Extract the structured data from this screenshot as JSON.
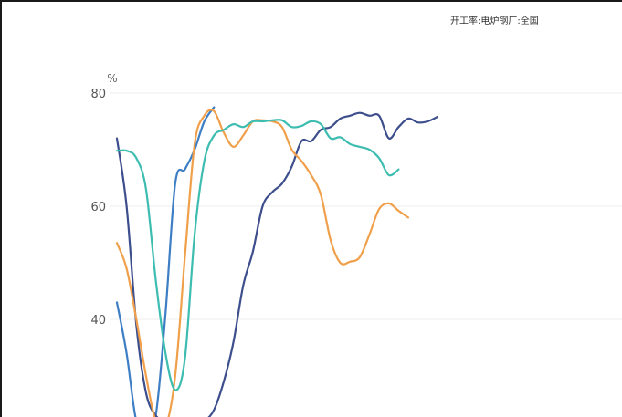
{
  "chart_data": {
    "type": "line",
    "title": "开工率:电炉钢厂:全国",
    "ylabel": "%",
    "xlabel": "",
    "ylim": [
      20,
      80
    ],
    "yticks": [
      40,
      60,
      80
    ],
    "grid": true,
    "x": [
      0,
      1,
      2,
      3,
      4,
      5,
      6,
      7,
      8,
      9,
      10,
      11,
      12,
      13,
      14,
      15,
      16,
      17,
      18,
      19,
      20,
      21,
      22,
      23,
      24,
      25,
      26,
      27,
      28,
      29,
      30,
      31,
      32,
      33,
      34,
      35,
      36,
      37,
      38,
      39,
      40,
      41,
      42,
      43,
      44,
      45,
      46,
      47,
      48,
      49,
      50,
      51,
      52
    ],
    "series": [
      {
        "color": "#3e7ec4",
        "values": [
          43,
          34,
          22,
          20.5,
          23,
          41,
          64,
          66.5,
          70,
          75,
          77.5,
          null,
          null,
          null,
          null,
          null,
          null,
          null,
          null,
          null,
          null,
          null,
          null,
          null,
          null,
          null,
          null,
          null,
          null,
          null,
          null,
          null,
          null,
          null,
          null,
          null,
          null,
          null,
          null,
          null,
          null,
          null,
          null,
          null,
          null,
          null,
          null,
          null,
          null,
          null,
          null,
          null,
          null
        ]
      },
      {
        "color": "#3d4e8c",
        "values": [
          72,
          60,
          39,
          27,
          23,
          22,
          21,
          20.5,
          21,
          22,
          24,
          29,
          36,
          46,
          52,
          60,
          62.5,
          64,
          67,
          71.5,
          71.5,
          73.5,
          74,
          75.5,
          76,
          76.5,
          76,
          76,
          72,
          74,
          75.5,
          74.8,
          75,
          75.8,
          null,
          null,
          null,
          null,
          null,
          null,
          null,
          null,
          null,
          null,
          null,
          null,
          null,
          null,
          null,
          null,
          null,
          null,
          null
        ]
      },
      {
        "color": "#f0a04b",
        "values": [
          53.5,
          49,
          40,
          30,
          22,
          21,
          30,
          51,
          71,
          76,
          76.8,
          73,
          70.5,
          72.5,
          75,
          75.2,
          75,
          74,
          70,
          68,
          65.5,
          62,
          54,
          50,
          50.2,
          51,
          55,
          59.5,
          60.5,
          59.2,
          58,
          null,
          null,
          null,
          null,
          null,
          null,
          null,
          null,
          null,
          null,
          null,
          null,
          null,
          null,
          null,
          null,
          null,
          null,
          null,
          null,
          null,
          null
        ]
      },
      {
        "color": "#3dbdb0",
        "values": [
          69.8,
          69.8,
          68.5,
          63,
          47,
          34,
          27.5,
          33,
          55,
          68,
          72.5,
          73.5,
          74.5,
          74,
          75,
          75,
          75.2,
          75.2,
          74,
          74.2,
          75,
          74.5,
          72,
          72.2,
          71,
          70.5,
          70,
          68.5,
          65.5,
          66.5,
          null,
          null,
          null,
          null,
          null,
          null,
          null,
          null,
          null,
          null,
          null,
          null,
          null,
          null,
          null,
          null,
          null,
          null,
          null,
          null,
          null,
          null,
          null
        ]
      }
    ]
  }
}
